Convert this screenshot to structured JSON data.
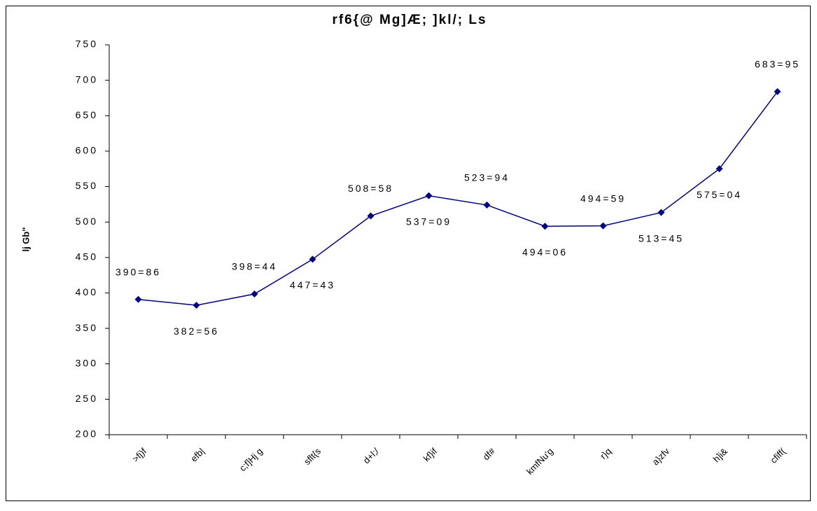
{
  "chart_data": {
    "type": "line",
    "title": "rf6{@ Mg]Æ; ]kl/; Ls",
    "y_label": "lj Gb\"",
    "categories": [
      ">fj)f",
      "efb|",
      "c;f]Hj g",
      "sflt{s",
      "d+l;/",
      "kf}if",
      "df#",
      "kmfNu'g",
      "r}q",
      "a}zfv",
      "h]i&",
      "cfiff("
    ],
    "series": [
      {
        "name": "",
        "color": "#000080",
        "values": [
          390.86,
          382.56,
          398.44,
          447.43,
          508.58,
          537.09,
          523.94,
          494.06,
          494.59,
          513.45,
          575.04,
          683.95
        ],
        "value_labels": [
          "390=86",
          "382=56",
          "398=44",
          "447=43",
          "508=58",
          "537=09",
          "523=94",
          "494=06",
          "494=59",
          "513=45",
          "575=04",
          "683=95"
        ]
      }
    ],
    "ylim": [
      200,
      750
    ],
    "yticks": [
      200,
      250,
      300,
      350,
      400,
      450,
      500,
      550,
      600,
      650,
      700,
      750
    ]
  }
}
